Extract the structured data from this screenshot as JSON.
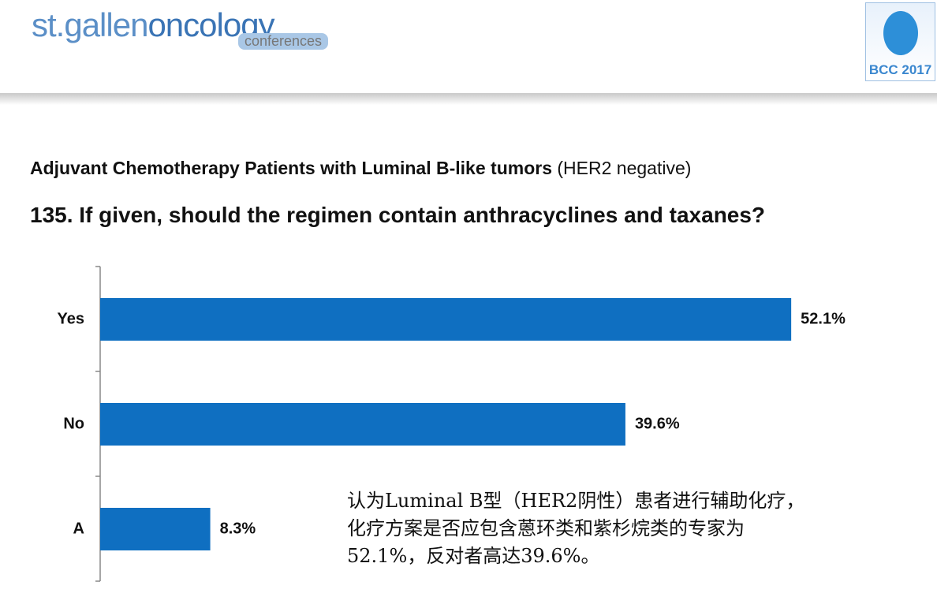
{
  "header": {
    "logo_main": "st.gallen",
    "logo_oncology": "oncology",
    "logo_sub": "conferences",
    "badge": "BCC 2017"
  },
  "chart_data": {
    "type": "bar",
    "orientation": "horizontal",
    "subtitle": "Adjuvant Chemotherapy Patients with Luminal B-like tumors",
    "subtitle_note": "(HER2 negative)",
    "title": "135. If given, should the regimen contain anthracyclines and taxanes?",
    "categories": [
      "Yes",
      "No",
      "A"
    ],
    "values": [
      52.1,
      39.6,
      8.3
    ],
    "value_labels": [
      "52.1%",
      "39.6%",
      "8.3%"
    ],
    "color": "#0f6fc1",
    "xlim": [
      0,
      60
    ],
    "annotation": "认为Luminal B型（HER2阴性）患者进行辅助化疗，化疗方案是否应包含蒽环类和紫杉烷类的专家为52.1%，反对者高达39.6%。"
  }
}
